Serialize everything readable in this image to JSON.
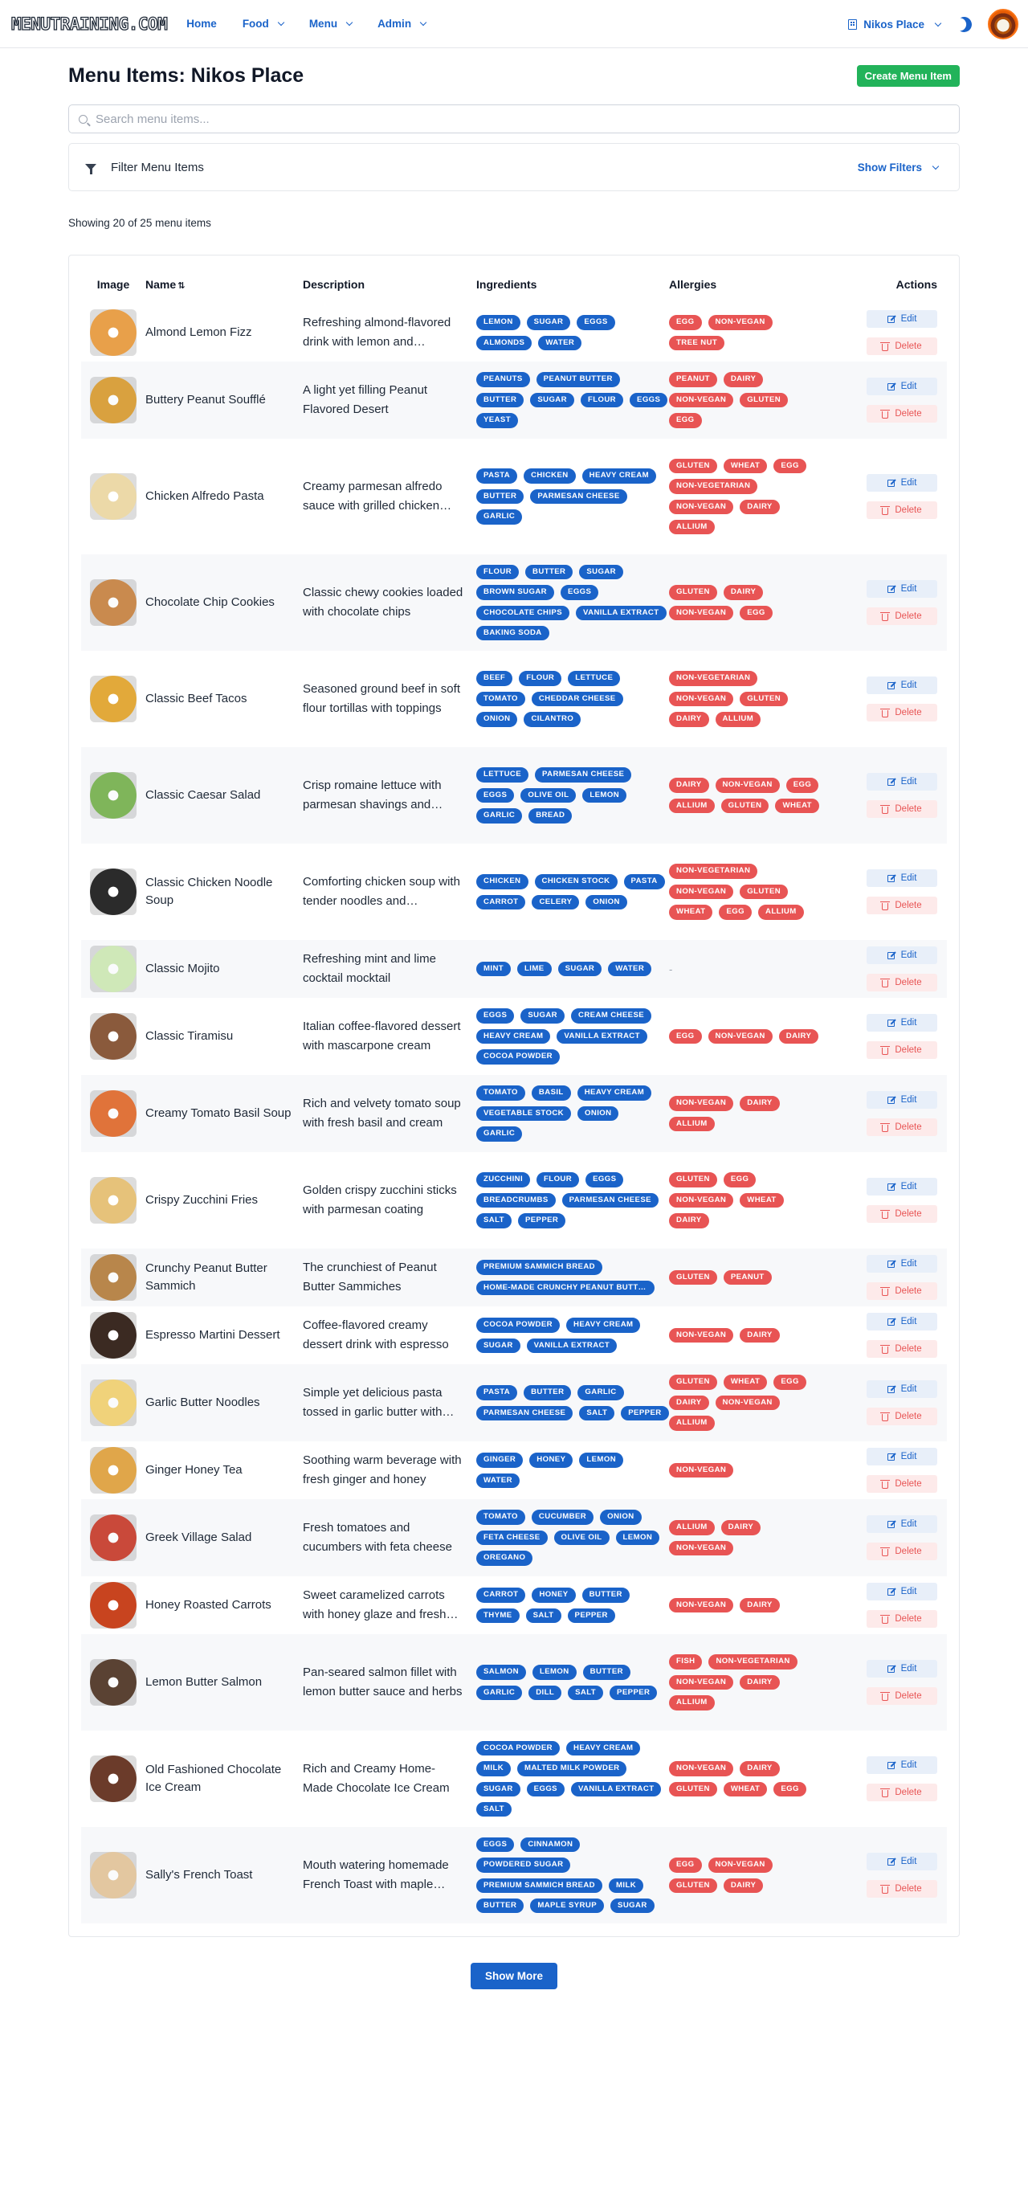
{
  "app": {
    "logo_text": "MENUTRAINING.COM",
    "nav": [
      {
        "label": "Home",
        "has_menu": false
      },
      {
        "label": "Food",
        "has_menu": true
      },
      {
        "label": "Menu",
        "has_menu": true
      },
      {
        "label": "Admin",
        "has_menu": true
      }
    ],
    "restaurant": "Nikos Place",
    "theme_icon": "moon-icon",
    "avatar_icon": "user-avatar"
  },
  "page": {
    "title": "Menu Items: Nikos Place",
    "create_label": "Create Menu Item",
    "search_placeholder": "Search menu items...",
    "filter_label": "Filter Menu Items",
    "show_filters_label": "Show Filters",
    "showing_text": "Showing 20 of 25 menu items",
    "show_more_label": "Show More"
  },
  "colors": {
    "primary": "#1a63c9",
    "create_button": "#22b35a",
    "allergy_chip": "#e85454",
    "ingredient_chip": "#1a63c9"
  },
  "table": {
    "headers": {
      "image": "Image",
      "name": "Name",
      "sort_icon": "sort-icon",
      "description": "Description",
      "ingredients": "Ingredients",
      "allergies": "Allergies",
      "actions": "Actions"
    },
    "edit_label": "Edit",
    "delete_label": "Delete",
    "no_allergies": "-",
    "rows": [
      {
        "name": "Almond Lemon Fizz",
        "description": "Refreshing almond-flavored drink with lemon and sparkling water",
        "ingredients": [
          "LEMON",
          "SUGAR",
          "EGGS",
          "ALMONDS",
          "WATER"
        ],
        "allergies": [
          "EGG",
          "NON-VEGAN",
          "TREE NUT"
        ],
        "thumb_color": "#e8a04a"
      },
      {
        "name": "Buttery Peanut Soufflé",
        "description": "A light yet filling Peanut Flavored Desert",
        "ingredients": [
          "PEANUTS",
          "PEANUT BUTTER",
          "BUTTER",
          "SUGAR",
          "FLOUR",
          "EGGS",
          "YEAST"
        ],
        "allergies": [
          "PEANUT",
          "DAIRY",
          "NON-VEGAN",
          "GLUTEN",
          "EGG"
        ],
        "thumb_color": "#d9a13f"
      },
      {
        "name": "Chicken Alfredo Pasta",
        "description": "Creamy parmesan alfredo sauce with grilled chicken over pasta",
        "ingredients": [
          "PASTA",
          "CHICKEN",
          "HEAVY CREAM",
          "BUTTER",
          "PARMESAN CHEESE",
          "GARLIC"
        ],
        "allergies": [
          "GLUTEN",
          "WHEAT",
          "EGG",
          "NON-VEGETARIAN",
          "NON-VEGAN",
          "DAIRY",
          "ALLIUM"
        ],
        "thumb_color": "#ecd9a8"
      },
      {
        "name": "Chocolate Chip Cookies",
        "description": "Classic chewy cookies loaded with chocolate chips",
        "ingredients": [
          "FLOUR",
          "BUTTER",
          "SUGAR",
          "BROWN SUGAR",
          "EGGS",
          "CHOCOLATE CHIPS",
          "VANILLA EXTRACT",
          "BAKING SODA"
        ],
        "allergies": [
          "GLUTEN",
          "DAIRY",
          "NON-VEGAN",
          "EGG"
        ],
        "thumb_color": "#c98a4e"
      },
      {
        "name": "Classic Beef Tacos",
        "description": "Seasoned ground beef in soft flour tortillas with toppings",
        "ingredients": [
          "BEEF",
          "FLOUR",
          "LETTUCE",
          "TOMATO",
          "CHEDDAR CHEESE",
          "ONION",
          "CILANTRO"
        ],
        "allergies": [
          "NON-VEGETARIAN",
          "NON-VEGAN",
          "GLUTEN",
          "DAIRY",
          "ALLIUM"
        ],
        "thumb_color": "#e2a93a"
      },
      {
        "name": "Classic Caesar Salad",
        "description": "Crisp romaine lettuce with parmesan shavings and croutons",
        "ingredients": [
          "LETTUCE",
          "PARMESAN CHEESE",
          "EGGS",
          "OLIVE OIL",
          "LEMON",
          "GARLIC",
          "BREAD"
        ],
        "allergies": [
          "DAIRY",
          "NON-VEGAN",
          "EGG",
          "ALLIUM",
          "GLUTEN",
          "WHEAT"
        ],
        "thumb_color": "#7fb55a"
      },
      {
        "name": "Classic Chicken Noodle Soup",
        "description": "Comforting chicken soup with tender noodles and vegetables",
        "ingredients": [
          "CHICKEN",
          "CHICKEN STOCK",
          "PASTA",
          "CARROT",
          "CELERY",
          "ONION"
        ],
        "allergies": [
          "NON-VEGETARIAN",
          "NON-VEGAN",
          "GLUTEN",
          "WHEAT",
          "EGG",
          "ALLIUM"
        ],
        "thumb_color": "#2b2b2b"
      },
      {
        "name": "Classic Mojito",
        "description": "Refreshing mint and lime cocktail mocktail",
        "ingredients": [
          "MINT",
          "LIME",
          "SUGAR",
          "WATER"
        ],
        "allergies": [],
        "thumb_color": "#cfe8b8"
      },
      {
        "name": "Classic Tiramisu",
        "description": "Italian coffee-flavored dessert with mascarpone cream",
        "ingredients": [
          "EGGS",
          "SUGAR",
          "CREAM CHEESE",
          "HEAVY CREAM",
          "VANILLA EXTRACT",
          "COCOA POWDER"
        ],
        "allergies": [
          "EGG",
          "NON-VEGAN",
          "DAIRY"
        ],
        "thumb_color": "#8a5a3c"
      },
      {
        "name": "Creamy Tomato Basil Soup",
        "description": "Rich and velvety tomato soup with fresh basil and cream",
        "ingredients": [
          "TOMATO",
          "BASIL",
          "HEAVY CREAM",
          "VEGETABLE STOCK",
          "ONION",
          "GARLIC"
        ],
        "allergies": [
          "NON-VEGAN",
          "DAIRY",
          "ALLIUM"
        ],
        "thumb_color": "#e0733a"
      },
      {
        "name": "Crispy Zucchini Fries",
        "description": "Golden crispy zucchini sticks with parmesan coating",
        "ingredients": [
          "ZUCCHINI",
          "FLOUR",
          "EGGS",
          "BREADCRUMBS",
          "PARMESAN CHEESE",
          "SALT",
          "PEPPER"
        ],
        "allergies": [
          "GLUTEN",
          "EGG",
          "NON-VEGAN",
          "WHEAT",
          "DAIRY"
        ],
        "thumb_color": "#e6c27a"
      },
      {
        "name": "Crunchy Peanut Butter Sammich",
        "description": "The crunchiest of Peanut Butter Sammiches",
        "ingredients": [
          "PREMIUM SAMMICH BREAD",
          "HOME-MADE CRUNCHY PEANUT BUTTER"
        ],
        "allergies": [
          "GLUTEN",
          "PEANUT"
        ],
        "thumb_color": "#b8864b"
      },
      {
        "name": "Espresso Martini Dessert",
        "description": "Coffee-flavored creamy dessert drink with espresso",
        "ingredients": [
          "COCOA POWDER",
          "HEAVY CREAM",
          "SUGAR",
          "VANILLA EXTRACT"
        ],
        "allergies": [
          "NON-VEGAN",
          "DAIRY"
        ],
        "thumb_color": "#3b2a22"
      },
      {
        "name": "Garlic Butter Noodles",
        "description": "Simple yet delicious pasta tossed in garlic butter with parmesan",
        "ingredients": [
          "PASTA",
          "BUTTER",
          "GARLIC",
          "PARMESAN CHEESE",
          "SALT",
          "PEPPER"
        ],
        "allergies": [
          "GLUTEN",
          "WHEAT",
          "EGG",
          "DAIRY",
          "NON-VEGAN",
          "ALLIUM"
        ],
        "thumb_color": "#f0d27a"
      },
      {
        "name": "Ginger Honey Tea",
        "description": "Soothing warm beverage with fresh ginger and honey",
        "ingredients": [
          "GINGER",
          "HONEY",
          "LEMON",
          "WATER"
        ],
        "allergies": [
          "NON-VEGAN"
        ],
        "thumb_color": "#e0a64a"
      },
      {
        "name": "Greek Village Salad",
        "description": "Fresh tomatoes and cucumbers with feta cheese",
        "ingredients": [
          "TOMATO",
          "CUCUMBER",
          "ONION",
          "FETA CHEESE",
          "OLIVE OIL",
          "LEMON",
          "OREGANO"
        ],
        "allergies": [
          "ALLIUM",
          "DAIRY",
          "NON-VEGAN"
        ],
        "thumb_color": "#c9493a"
      },
      {
        "name": "Honey Roasted Carrots",
        "description": "Sweet caramelized carrots with honey glaze and fresh thyme",
        "ingredients": [
          "CARROT",
          "HONEY",
          "BUTTER",
          "THYME",
          "SALT",
          "PEPPER"
        ],
        "allergies": [
          "NON-VEGAN",
          "DAIRY"
        ],
        "thumb_color": "#c8441f"
      },
      {
        "name": "Lemon Butter Salmon",
        "description": "Pan-seared salmon fillet with lemon butter sauce and herbs",
        "ingredients": [
          "SALMON",
          "LEMON",
          "BUTTER",
          "GARLIC",
          "DILL",
          "SALT",
          "PEPPER"
        ],
        "allergies": [
          "FISH",
          "NON-VEGETARIAN",
          "NON-VEGAN",
          "DAIRY",
          "ALLIUM"
        ],
        "thumb_color": "#5a4233"
      },
      {
        "name": "Old Fashioned Chocolate Ice Cream",
        "description": "Rich and Creamy Home-Made Chocolate Ice Cream",
        "ingredients": [
          "COCOA POWDER",
          "HEAVY CREAM",
          "MILK",
          "MALTED MILK POWDER",
          "SUGAR",
          "EGGS",
          "VANILLA EXTRACT",
          "SALT"
        ],
        "allergies": [
          "NON-VEGAN",
          "DAIRY",
          "GLUTEN",
          "WHEAT",
          "EGG"
        ],
        "thumb_color": "#6b3b2a"
      },
      {
        "name": "Sally's French Toast",
        "description": "Mouth watering homemade French Toast with maple syrup",
        "ingredients": [
          "EGGS",
          "CINNAMON",
          "POWDERED SUGAR",
          "PREMIUM SAMMICH BREAD",
          "MILK",
          "BUTTER",
          "MAPLE SYRUP",
          "SUGAR"
        ],
        "allergies": [
          "EGG",
          "NON-VEGAN",
          "GLUTEN",
          "DAIRY"
        ],
        "thumb_color": "#e3c7a0"
      }
    ]
  }
}
